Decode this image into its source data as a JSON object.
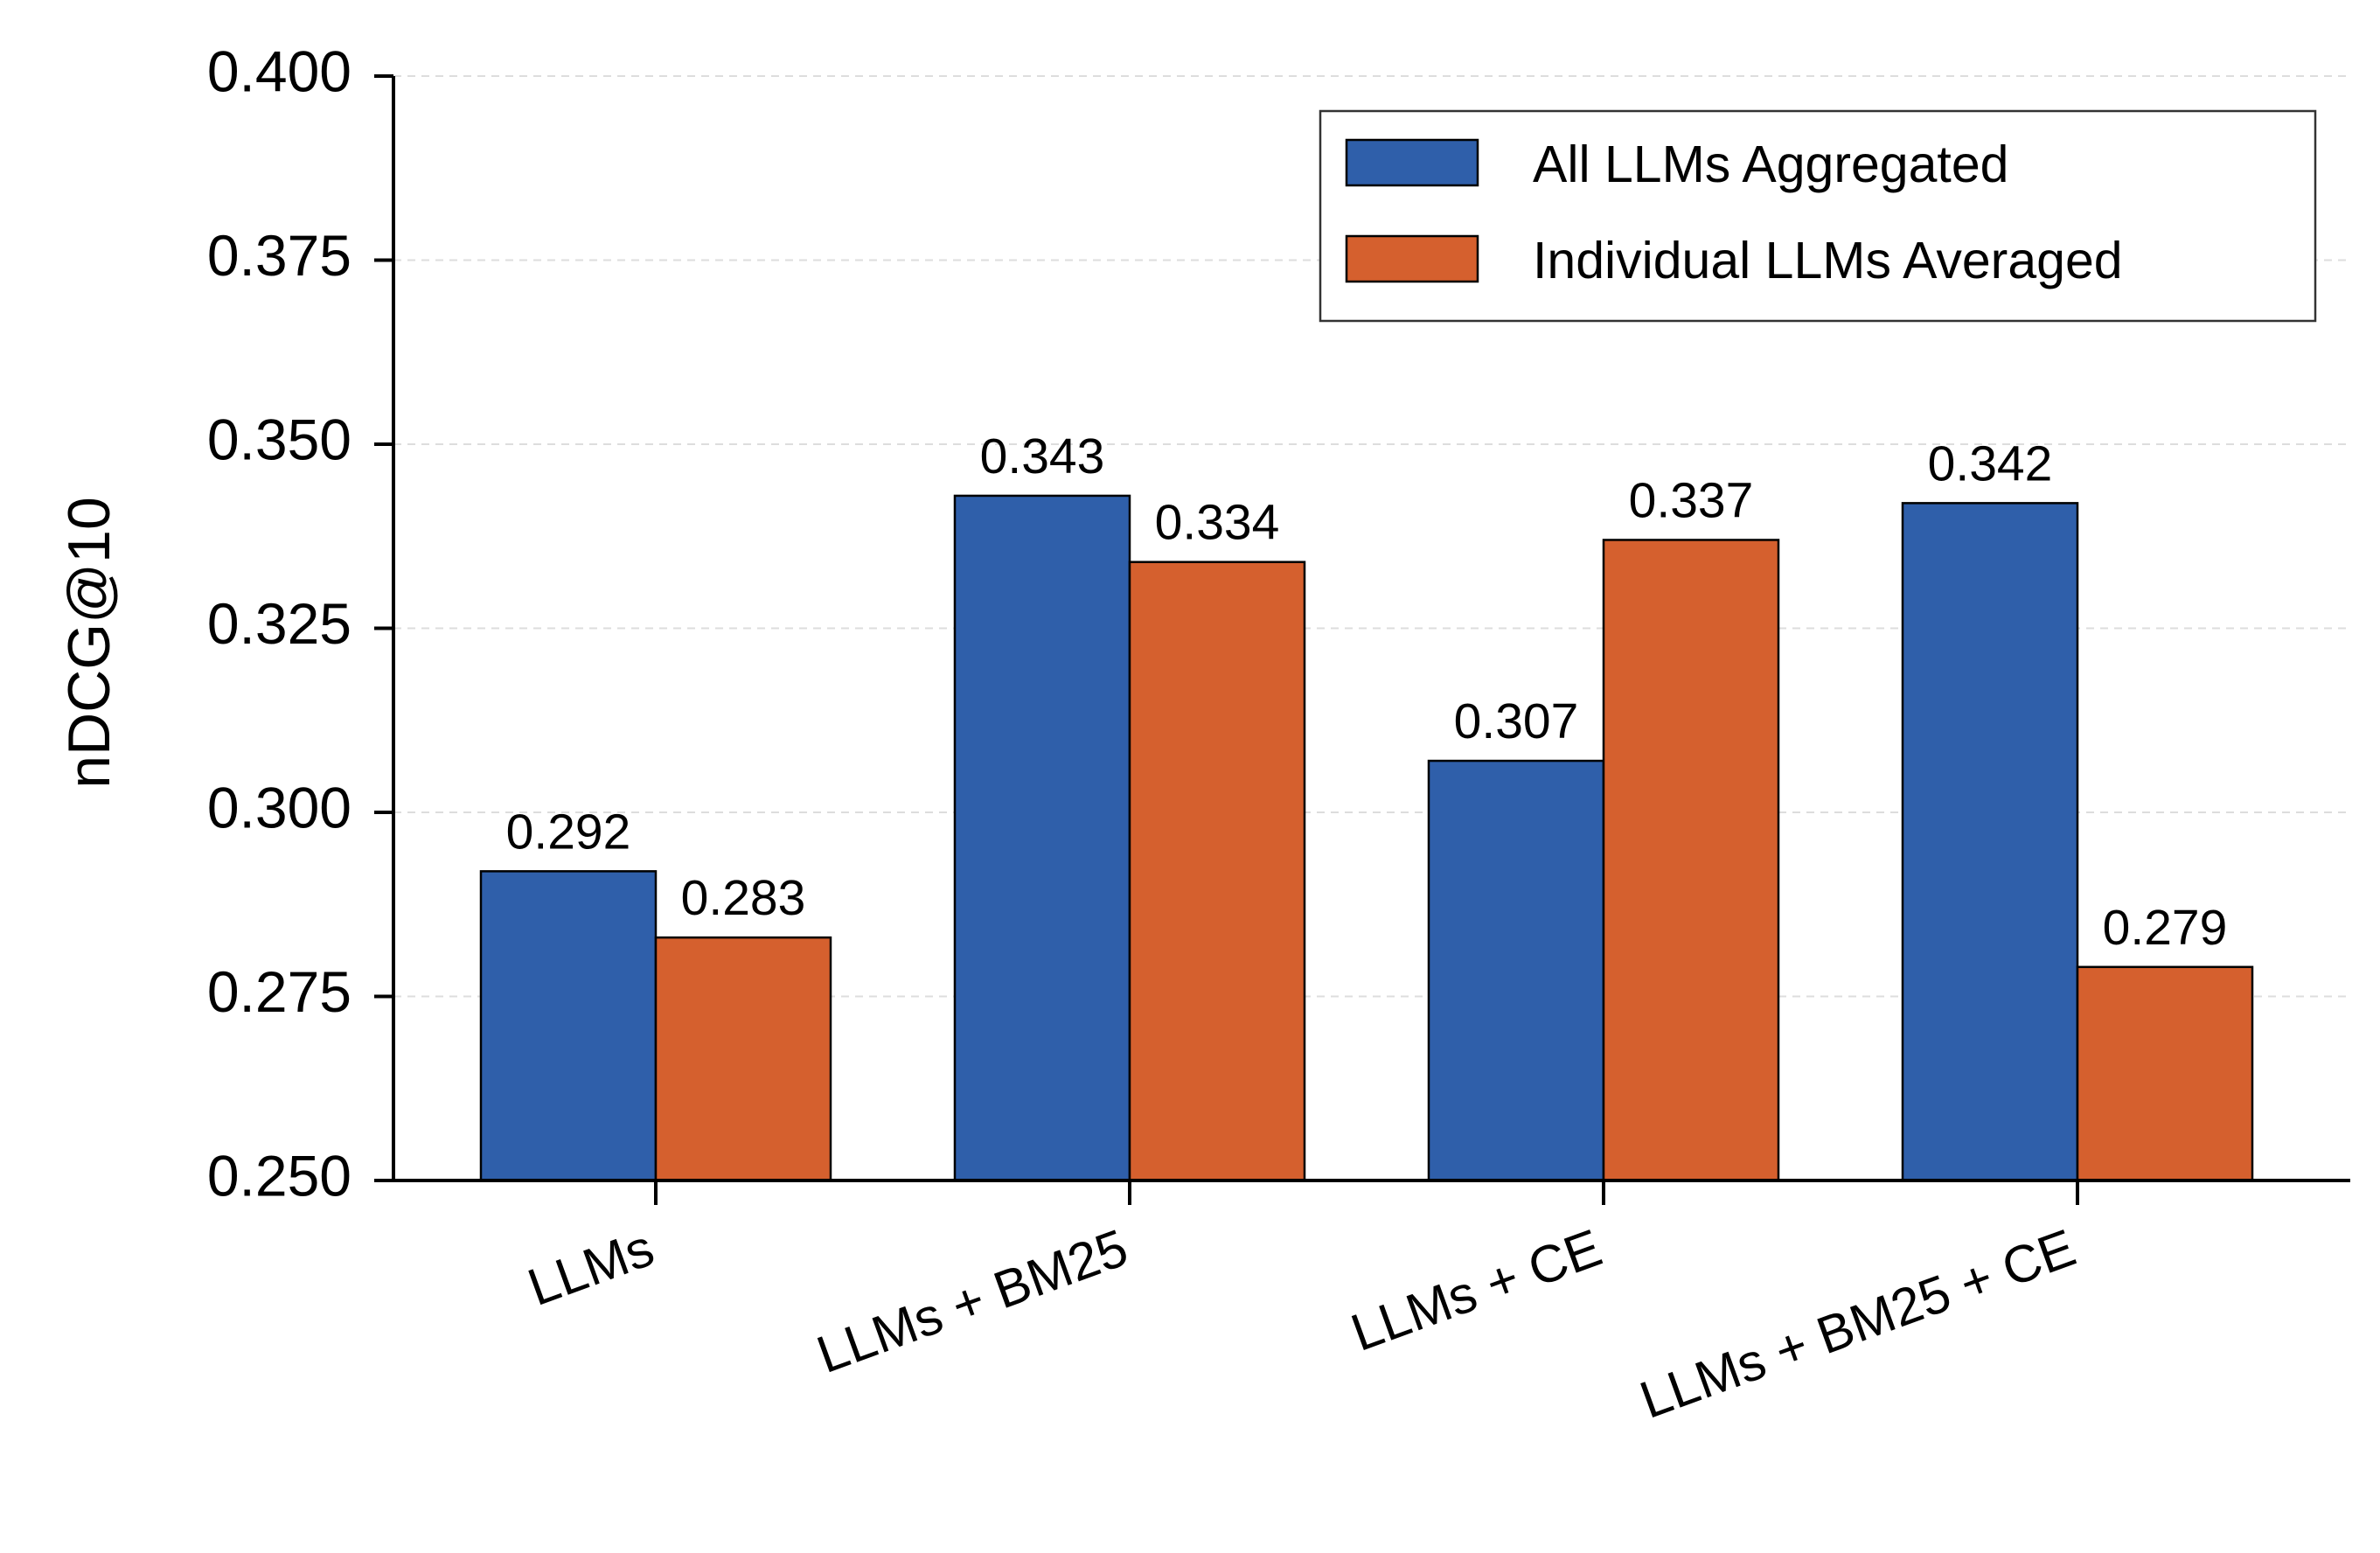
{
  "chart_data": {
    "type": "bar",
    "title": "",
    "xlabel": "",
    "ylabel": "nDCG@10",
    "ylim": [
      0.25,
      0.4
    ],
    "yticks": [
      "0.250",
      "0.275",
      "0.300",
      "0.325",
      "0.350",
      "0.375",
      "0.400"
    ],
    "ytick_values": [
      0.25,
      0.275,
      0.3,
      0.325,
      0.35,
      0.375,
      0.4
    ],
    "grid": true,
    "legend_position": "top-right",
    "categories": [
      "LLMs",
      "LLMs + BM25",
      "LLMs + CE",
      "LLMs + BM25 + CE"
    ],
    "series": [
      {
        "name": "All LLMs Aggregated",
        "color": "#2f5faa",
        "values": [
          0.292,
          0.343,
          0.307,
          0.342
        ],
        "labels": [
          "0.292",
          "0.343",
          "0.307",
          "0.342"
        ]
      },
      {
        "name": "Individual LLMs Averaged",
        "color": "#d5602e",
        "values": [
          0.283,
          0.334,
          0.337,
          0.279
        ],
        "labels": [
          "0.283",
          "0.334",
          "0.337",
          "0.279"
        ]
      }
    ]
  }
}
